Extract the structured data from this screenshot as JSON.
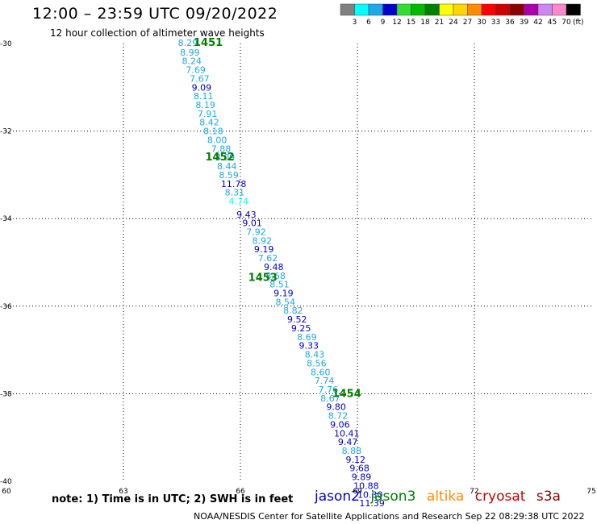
{
  "header": {
    "title": "12:00 – 23:59 UTC 09/20/2022",
    "subtitle": "12 hour collection of altimeter wave heights"
  },
  "footer": {
    "note": "note: 1) Time is in UTC; 2) SWH is in feet",
    "credit": "NOAA/NESDIS Center for Satellite Applications and Research   Sep 22 08:29:38 UTC 2022"
  },
  "satellites": [
    {
      "name": "jason2",
      "color": "#0000cc"
    },
    {
      "name": "jason3",
      "color": "#008000"
    },
    {
      "name": "altika",
      "color": "#ff8c00"
    },
    {
      "name": "cryosat",
      "color": "#cc0000"
    },
    {
      "name": "s3a",
      "color": "#8b0000"
    }
  ],
  "legend": {
    "unit": "(ft)",
    "bins": [
      {
        "label": "3",
        "color": "#808080"
      },
      {
        "label": "6",
        "color": "#00ffff"
      },
      {
        "label": "9",
        "color": "#1ea8e6"
      },
      {
        "label": "12",
        "color": "#0000cc"
      },
      {
        "label": "15",
        "color": "#33dd33"
      },
      {
        "label": "18",
        "color": "#00bb00"
      },
      {
        "label": "21",
        "color": "#008000"
      },
      {
        "label": "24",
        "color": "#ffff00"
      },
      {
        "label": "27",
        "color": "#ffd700"
      },
      {
        "label": "30",
        "color": "#ff8c00"
      },
      {
        "label": "33",
        "color": "#ff0000"
      },
      {
        "label": "36",
        "color": "#cc0000"
      },
      {
        "label": "39",
        "color": "#8b0000"
      },
      {
        "label": "42",
        "color": "#aa00aa"
      },
      {
        "label": "45",
        "color": "#cc88ee"
      },
      {
        "label": "70",
        "color": "#ff88cc"
      },
      {
        "label": "",
        "color": "#000000"
      }
    ]
  },
  "chart_data": {
    "type": "scatter",
    "title": "12:00 – 23:59 UTC 09/20/2022",
    "subtitle": "12 hour collection of altimeter wave heights",
    "xlabel": "",
    "ylabel": "",
    "xlim": [
      60,
      75
    ],
    "ylim": [
      -40,
      -30
    ],
    "xticks": [
      "60",
      "63",
      "66",
      "69",
      "72",
      "75"
    ],
    "yticks": [
      "-30",
      "-32",
      "-34",
      "-36",
      "-38",
      "-40"
    ],
    "grid": true,
    "points": [
      {
        "x": 64.4,
        "y": -29.98,
        "label": "8.29",
        "color": "#1ea8e6"
      },
      {
        "x": 64.45,
        "y": -30.2,
        "label": "8.99",
        "color": "#1ea8e6"
      },
      {
        "x": 64.5,
        "y": -30.4,
        "label": "8.24",
        "color": "#1ea8e6"
      },
      {
        "x": 64.6,
        "y": -30.6,
        "label": "7.69",
        "color": "#1ea8e6"
      },
      {
        "x": 64.7,
        "y": -30.8,
        "label": "7.67",
        "color": "#1ea8e6"
      },
      {
        "x": 64.75,
        "y": -31.0,
        "label": "9.09",
        "color": "#0000cc"
      },
      {
        "x": 64.8,
        "y": -31.2,
        "label": "8.11",
        "color": "#1ea8e6"
      },
      {
        "x": 64.85,
        "y": -31.4,
        "label": "8.19",
        "color": "#1ea8e6"
      },
      {
        "x": 64.9,
        "y": -31.6,
        "label": "7.91",
        "color": "#1ea8e6"
      },
      {
        "x": 64.95,
        "y": -31.8,
        "label": "8.42",
        "color": "#1ea8e6"
      },
      {
        "x": 65.05,
        "y": -32.0,
        "label": "8.18",
        "color": "#1ea8e6"
      },
      {
        "x": 65.15,
        "y": -32.2,
        "label": "8.00",
        "color": "#1ea8e6"
      },
      {
        "x": 65.25,
        "y": -32.4,
        "label": "7.88",
        "color": "#1ea8e6"
      },
      {
        "x": 65.35,
        "y": -32.6,
        "label": "8.09",
        "color": "#1ea8e6"
      },
      {
        "x": 65.4,
        "y": -32.8,
        "label": "8.44",
        "color": "#1ea8e6"
      },
      {
        "x": 65.45,
        "y": -33.0,
        "label": "8.59",
        "color": "#1ea8e6"
      },
      {
        "x": 65.5,
        "y": -33.2,
        "label": "11.78",
        "color": "#0000cc"
      },
      {
        "x": 65.6,
        "y": -33.4,
        "label": "8.31",
        "color": "#1ea8e6"
      },
      {
        "x": 65.7,
        "y": -33.6,
        "label": "4.74",
        "color": "#00ffff"
      },
      {
        "x": 65.9,
        "y": -33.9,
        "label": "9.43",
        "color": "#0000cc"
      },
      {
        "x": 66.05,
        "y": -34.1,
        "label": "9.01",
        "color": "#0000cc"
      },
      {
        "x": 66.15,
        "y": -34.3,
        "label": "7.92",
        "color": "#1ea8e6"
      },
      {
        "x": 66.3,
        "y": -34.5,
        "label": "8.92",
        "color": "#1ea8e6"
      },
      {
        "x": 66.35,
        "y": -34.7,
        "label": "9.19",
        "color": "#0000cc"
      },
      {
        "x": 66.45,
        "y": -34.9,
        "label": "7.62",
        "color": "#1ea8e6"
      },
      {
        "x": 66.6,
        "y": -35.1,
        "label": "9.48",
        "color": "#0000cc"
      },
      {
        "x": 66.65,
        "y": -35.3,
        "label": "8.68",
        "color": "#1ea8e6"
      },
      {
        "x": 66.75,
        "y": -35.5,
        "label": "8.51",
        "color": "#1ea8e6"
      },
      {
        "x": 66.85,
        "y": -35.7,
        "label": "9.19",
        "color": "#0000cc"
      },
      {
        "x": 66.9,
        "y": -35.9,
        "label": "8.54",
        "color": "#1ea8e6"
      },
      {
        "x": 67.1,
        "y": -36.1,
        "label": "8.82",
        "color": "#1ea8e6"
      },
      {
        "x": 67.2,
        "y": -36.3,
        "label": "9.52",
        "color": "#0000cc"
      },
      {
        "x": 67.3,
        "y": -36.5,
        "label": "9.25",
        "color": "#0000cc"
      },
      {
        "x": 67.45,
        "y": -36.7,
        "label": "8.69",
        "color": "#1ea8e6"
      },
      {
        "x": 67.5,
        "y": -36.9,
        "label": "9.33",
        "color": "#0000cc"
      },
      {
        "x": 67.65,
        "y": -37.1,
        "label": "8.43",
        "color": "#1ea8e6"
      },
      {
        "x": 67.7,
        "y": -37.3,
        "label": "8.56",
        "color": "#1ea8e6"
      },
      {
        "x": 67.8,
        "y": -37.5,
        "label": "8.60",
        "color": "#1ea8e6"
      },
      {
        "x": 67.9,
        "y": -37.7,
        "label": "7.74",
        "color": "#1ea8e6"
      },
      {
        "x": 68.0,
        "y": -37.9,
        "label": "7.76",
        "color": "#1ea8e6"
      },
      {
        "x": 68.05,
        "y": -38.1,
        "label": "8.67",
        "color": "#1ea8e6"
      },
      {
        "x": 68.2,
        "y": -38.3,
        "label": "9.80",
        "color": "#0000cc"
      },
      {
        "x": 68.25,
        "y": -38.5,
        "label": "8.72",
        "color": "#1ea8e6"
      },
      {
        "x": 68.3,
        "y": -38.7,
        "label": "9.06",
        "color": "#0000cc"
      },
      {
        "x": 68.4,
        "y": -38.9,
        "label": "10.41",
        "color": "#0000cc"
      },
      {
        "x": 68.5,
        "y": -39.1,
        "label": "9.47",
        "color": "#0000cc"
      },
      {
        "x": 68.6,
        "y": -39.3,
        "label": "8.88",
        "color": "#1ea8e6"
      },
      {
        "x": 68.7,
        "y": -39.5,
        "label": "9.12",
        "color": "#0000cc"
      },
      {
        "x": 68.8,
        "y": -39.7,
        "label": "9.68",
        "color": "#0000cc"
      },
      {
        "x": 68.85,
        "y": -39.9,
        "label": "9.89",
        "color": "#0000cc"
      },
      {
        "x": 68.9,
        "y": -40.1,
        "label": "10.88",
        "color": "#0000cc"
      },
      {
        "x": 69.0,
        "y": -40.3,
        "label": "10.30",
        "color": "#0000cc"
      },
      {
        "x": 69.05,
        "y": -40.5,
        "label": "11.39",
        "color": "#0000cc"
      }
    ],
    "annotations": [
      {
        "text": "1451",
        "x": 64.8,
        "y": -29.98
      },
      {
        "text": "1452",
        "x": 65.1,
        "y": -32.6
      },
      {
        "text": "1453",
        "x": 66.2,
        "y": -35.35
      },
      {
        "text": "1454",
        "x": 68.35,
        "y": -38.0
      }
    ]
  }
}
